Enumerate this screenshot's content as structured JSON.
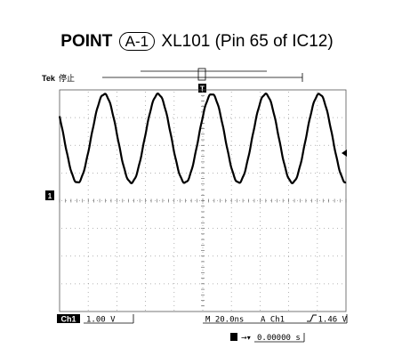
{
  "title": {
    "prefix": "POINT",
    "point_id": "A-1",
    "signal": "XL101 (Pin 65 of IC12)"
  },
  "scope": {
    "brand": "Tek",
    "status": "停止",
    "trigger_marker": "T",
    "ch1_marker": "1",
    "channel": "Ch1",
    "volts_per_div": "1.00 V",
    "timebase": "M 20.0ns",
    "trigger_source": "A  Ch1",
    "trigger_level": "1.46 V",
    "position_label": "0.00000 s"
  },
  "waveform": {
    "cycles_on_screen": 5.33,
    "phase_start_deg": 150,
    "amplitude_divs": 1.6,
    "center_offset_divs": 2.25
  },
  "colors": {
    "trace": "#000000",
    "grid": "#8a8a8a",
    "background": "#ffffff"
  }
}
